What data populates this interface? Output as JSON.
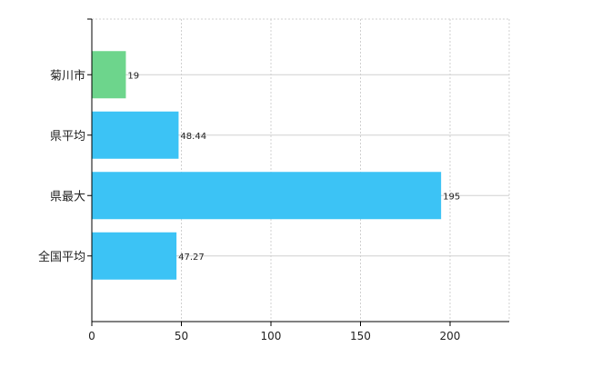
{
  "chart_data": {
    "type": "bar",
    "orientation": "horizontal",
    "categories": [
      "菊川市",
      "県平均",
      "県最大",
      "全国平均"
    ],
    "values": [
      19,
      48.44,
      195,
      47.27
    ],
    "value_labels": [
      "19",
      "48.44",
      "195",
      "47.27"
    ],
    "bar_colors": [
      "#6dd58c",
      "#3cc3f5",
      "#3cc3f5",
      "#3cc3f5"
    ],
    "xlim": [
      0,
      233
    ],
    "xticks": [
      0,
      50,
      100,
      150,
      200
    ],
    "xtick_labels": [
      "0",
      "50",
      "100",
      "150",
      "200"
    ],
    "title": "",
    "xlabel": "",
    "ylabel": "",
    "grid": true,
    "legend": "none"
  },
  "colors": {
    "grid": "#d0d0d0",
    "axis": "#000000",
    "highlight_bar": "#6dd58c",
    "default_bar": "#3cc3f5"
  }
}
